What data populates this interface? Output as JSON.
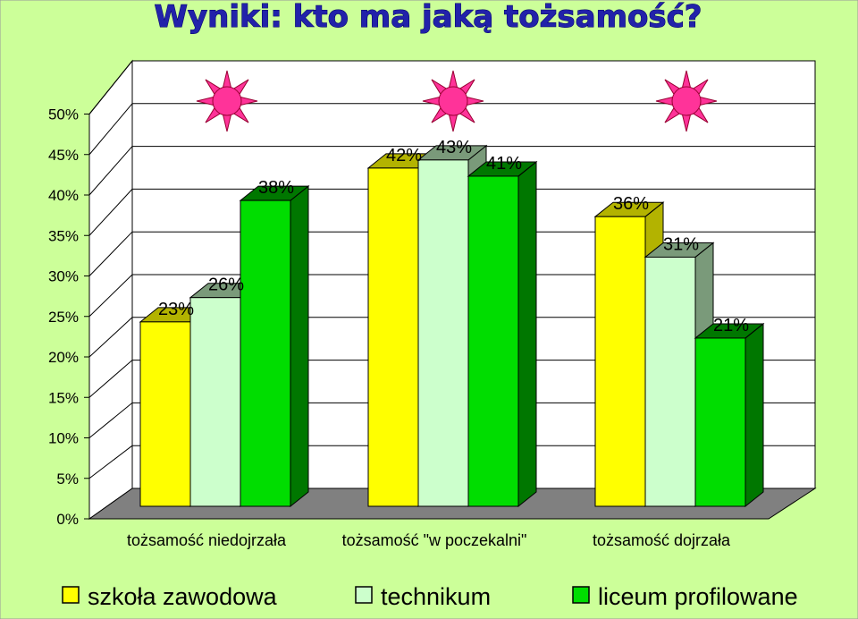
{
  "chart_data": {
    "type": "bar",
    "title": "Wyniki: kto ma jaką tożsamość?",
    "categories": [
      "tożsamość niedojrzała",
      "tożsamość \"w poczekalni\"",
      "tożsamość dojrzała"
    ],
    "series": [
      {
        "name": "szkoła zawodowa",
        "values": [
          23,
          42,
          36
        ],
        "color": "#FFFF00",
        "side": "#B3B300"
      },
      {
        "name": "technikum",
        "values": [
          26,
          43,
          31
        ],
        "color": "#CCFFCC",
        "side": "#7A9A7A"
      },
      {
        "name": "liceum profilowane",
        "values": [
          38,
          41,
          21
        ],
        "color": "#00DD00",
        "side": "#007700"
      }
    ],
    "data_labels": [
      [
        "23%",
        "42%",
        "36%"
      ],
      [
        "26%",
        "43%",
        "31%"
      ],
      [
        "38%",
        "41%",
        "21%"
      ]
    ],
    "ylim": [
      0,
      50
    ],
    "yticks": [
      "0%",
      "5%",
      "10%",
      "15%",
      "20%",
      "25%",
      "30%",
      "35%",
      "40%",
      "45%",
      "50%"
    ],
    "xlabel": "",
    "ylabel": "",
    "grid": true,
    "legend_position": "bottom",
    "decorations": [
      "sun-icon",
      "sun-icon",
      "sun-icon"
    ]
  }
}
